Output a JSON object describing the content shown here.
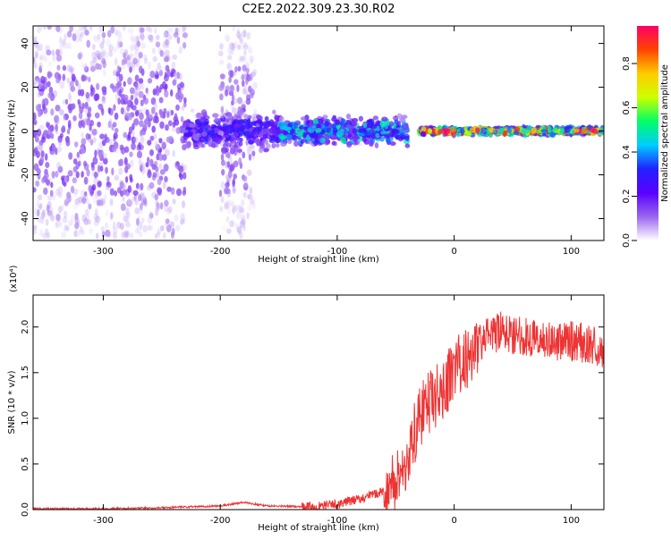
{
  "title": "C2E2.2022.309.23.30.R02",
  "chart_data": [
    {
      "type": "heatmap",
      "xlabel": "Height of straight line (km)",
      "ylabel": "Frequency (Hz)",
      "xlim": [
        -360,
        128
      ],
      "ylim": [
        -50,
        48
      ],
      "xticks": [
        -300,
        -200,
        -100,
        0,
        100
      ],
      "yticks": [
        -40,
        -20,
        0,
        20,
        40
      ],
      "colorbar": {
        "label": "Normalized spectral amplitude",
        "range": [
          0.0,
          0.97
        ],
        "ticks": [
          "0.0",
          "0.2",
          "0.4",
          "0.6",
          "0.8"
        ],
        "colors": [
          "#ffffff",
          "#9966ee",
          "#5a00ff",
          "#2222ff",
          "#00ccff",
          "#00ff66",
          "#ccff00",
          "#ffcc00",
          "#ff4400",
          "#ff0066"
        ]
      },
      "regions": [
        {
          "x": [
            -360,
            -230
          ],
          "freq_spread": 48,
          "amplitude": 0.15,
          "note_density": "high"
        },
        {
          "x": [
            -200,
            -170
          ],
          "freq_spread": 48,
          "amplitude": 0.12
        },
        {
          "x": [
            -230,
            -150
          ],
          "freq_spread": 10,
          "amplitude": 0.3
        },
        {
          "x": [
            -150,
            -40
          ],
          "freq_spread": 8,
          "amplitude": 0.45
        },
        {
          "x": [
            -30,
            128
          ],
          "freq_spread": 2,
          "amplitude": 0.9
        }
      ]
    },
    {
      "type": "line",
      "xlabel": "Height of straight line (km)",
      "ylabel": "SNR (10 * v/v)",
      "yscale_label": "(x10⁴)",
      "color": "#ee3333",
      "xlim": [
        -360,
        128
      ],
      "ylim": [
        0.0,
        2.35
      ],
      "xticks": [
        -300,
        -200,
        -100,
        0,
        100
      ],
      "yticks": [
        "0.0",
        "0.5",
        "1.0",
        "1.5",
        "2.0"
      ],
      "x": [
        -360,
        -300,
        -250,
        -200,
        -180,
        -160,
        -120,
        -100,
        -80,
        -60,
        -50,
        -40,
        -30,
        -20,
        -10,
        0,
        10,
        20,
        30,
        40,
        60,
        80,
        100,
        120,
        128
      ],
      "y": [
        0.01,
        0.01,
        0.02,
        0.04,
        0.08,
        0.04,
        0.03,
        0.06,
        0.12,
        0.2,
        0.3,
        0.55,
        1.0,
        1.2,
        1.3,
        1.55,
        1.65,
        1.8,
        1.9,
        1.95,
        1.9,
        1.85,
        1.85,
        1.8,
        1.75
      ]
    }
  ]
}
